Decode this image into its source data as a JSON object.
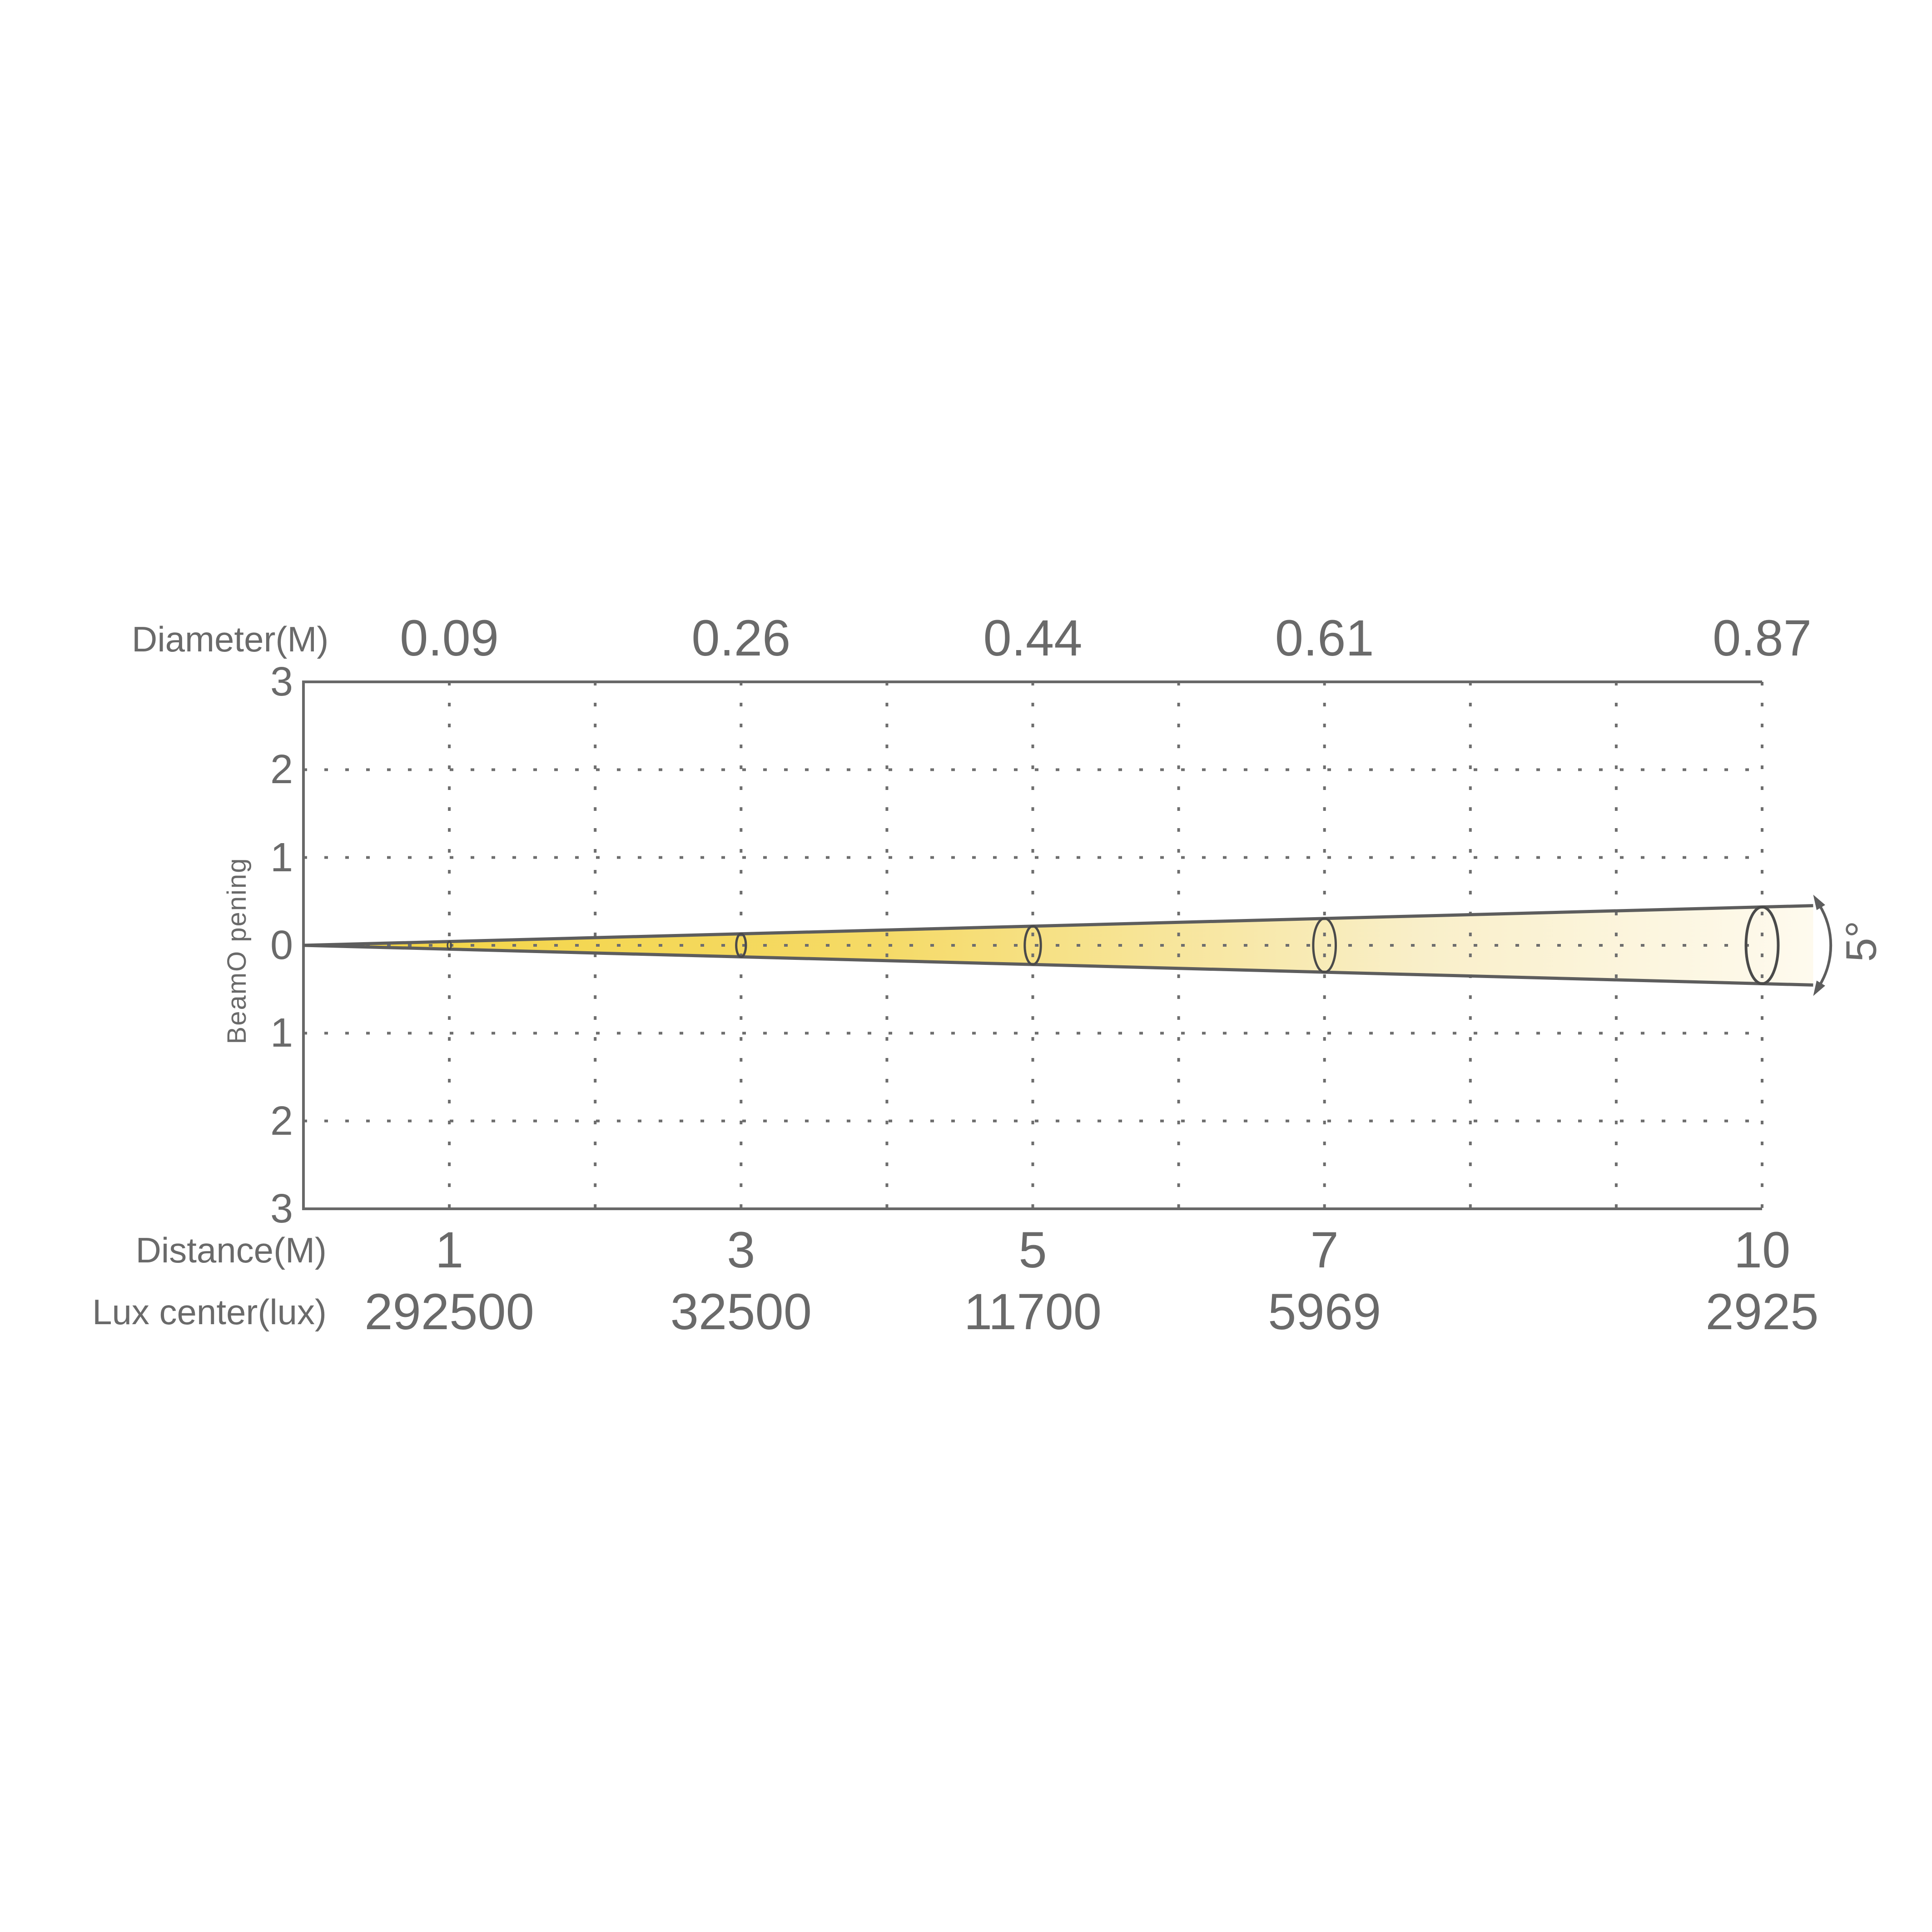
{
  "chart_data": {
    "type": "area",
    "subtype": "light-beam-cone-photometric-diagram",
    "top_axis": {
      "label": "Diameter(M)",
      "values": [
        "0.09",
        "0.26",
        "0.44",
        "0.61",
        "0.87"
      ]
    },
    "bottom_axis": {
      "label": "Distance(M)",
      "values": [
        "1",
        "3",
        "5",
        "7",
        "10"
      ]
    },
    "lux_row": {
      "label": "Lux center(lux)",
      "values": [
        "292500",
        "32500",
        "11700",
        "5969",
        "2925"
      ]
    },
    "y_axis": {
      "label": "BeamO pening",
      "tick_labels": [
        "3",
        "2",
        "1",
        "0",
        "1",
        "2",
        "3"
      ],
      "tick_units": [
        3,
        2,
        1,
        0,
        -1,
        -2,
        -3
      ],
      "range": [
        -3,
        3
      ]
    },
    "x_axis": {
      "range_m": [
        0,
        10
      ],
      "gridline_step_m": 1
    },
    "grid_style": "dotted",
    "beam": {
      "full_angle_deg": 5,
      "angle_label": "5°",
      "apex_distance_m": 0,
      "apex_y": 0
    },
    "measurements": [
      {
        "distance_m": 1,
        "diameter_m": 0.09,
        "lux_center": 292500
      },
      {
        "distance_m": 3,
        "diameter_m": 0.26,
        "lux_center": 32500
      },
      {
        "distance_m": 5,
        "diameter_m": 0.44,
        "lux_center": 11700
      },
      {
        "distance_m": 7,
        "diameter_m": 0.61,
        "lux_center": 5969
      },
      {
        "distance_m": 10,
        "diameter_m": 0.87,
        "lux_center": 2925
      }
    ],
    "colors": {
      "background": "#ffffff",
      "axis_text": "#6a6a6a",
      "grid_dots": "#6e6e6e",
      "frame": "#686868",
      "beam_edge": "#5d5d5d",
      "ellipse_outline": "#4a4a4a",
      "beam_gradient_start": "#F3D441",
      "beam_gradient_mid": "#F5DA66",
      "beam_gradient_late": "#F9EFC9",
      "beam_gradient_end": "#FEFAEE"
    }
  }
}
